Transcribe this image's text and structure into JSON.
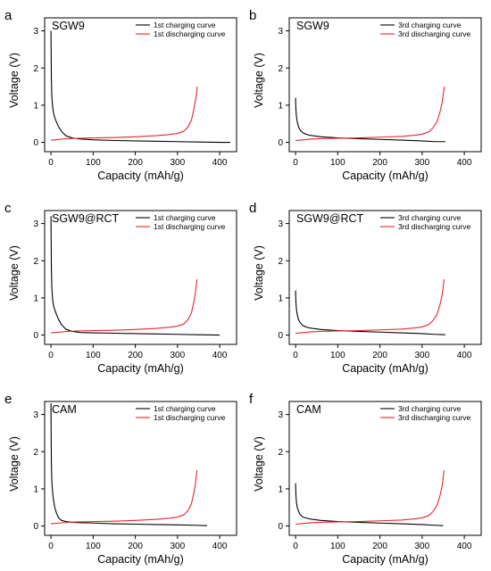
{
  "figure": {
    "background": "#ffffff"
  },
  "chart_data": [
    {
      "panel_label": "a",
      "type": "line",
      "sample": "SGW9",
      "xlabel": "Capacity (mAh/g)",
      "ylabel": "Voltage (V)",
      "xlim": [
        -15,
        440
      ],
      "ylim": [
        -0.25,
        3.35
      ],
      "xticks": [
        "0",
        "100",
        "200",
        "300",
        "400"
      ],
      "yticks": [
        "0",
        "1",
        "2",
        "3"
      ],
      "legend_position": "top-right",
      "series": [
        {
          "name": "1st charging curve",
          "color": "#000000",
          "x": [
            0,
            0.5,
            1,
            2,
            4,
            6,
            9,
            13,
            18,
            25,
            35,
            50,
            70,
            100,
            150,
            200,
            250,
            300,
            350,
            400,
            425
          ],
          "y": [
            3.0,
            2.4,
            1.7,
            1.25,
            0.95,
            0.8,
            0.66,
            0.55,
            0.42,
            0.3,
            0.18,
            0.12,
            0.09,
            0.07,
            0.05,
            0.04,
            0.03,
            0.02,
            0.01,
            0.0,
            0.0
          ]
        },
        {
          "name": "1st discharging curve",
          "color": "#e8262b",
          "x": [
            0,
            10,
            20,
            40,
            60,
            100,
            150,
            200,
            250,
            280,
            300,
            315,
            325,
            333,
            338,
            342,
            345,
            347
          ],
          "y": [
            0.06,
            0.07,
            0.08,
            0.1,
            0.11,
            0.12,
            0.13,
            0.15,
            0.18,
            0.21,
            0.24,
            0.3,
            0.42,
            0.6,
            0.85,
            1.1,
            1.3,
            1.5
          ]
        }
      ]
    },
    {
      "panel_label": "b",
      "type": "line",
      "sample": "SGW9",
      "xlabel": "Capacity (mAh/g)",
      "ylabel": "Voltage (V)",
      "xlim": [
        -15,
        440
      ],
      "ylim": [
        -0.25,
        3.35
      ],
      "xticks": [
        "0",
        "100",
        "200",
        "300",
        "400"
      ],
      "yticks": [
        "0",
        "1",
        "2",
        "3"
      ],
      "legend_position": "top-right",
      "series": [
        {
          "name": "3rd charging curve",
          "color": "#000000",
          "x": [
            0,
            0.5,
            1,
            2,
            4,
            7,
            10,
            15,
            20,
            30,
            40,
            60,
            100,
            150,
            200,
            250,
            300,
            330,
            355
          ],
          "y": [
            1.2,
            1.0,
            0.85,
            0.7,
            0.55,
            0.42,
            0.35,
            0.28,
            0.24,
            0.2,
            0.18,
            0.15,
            0.12,
            0.1,
            0.08,
            0.06,
            0.04,
            0.02,
            0.02
          ]
        },
        {
          "name": "3rd discharging curve",
          "color": "#e8262b",
          "x": [
            0,
            10,
            20,
            40,
            60,
            100,
            150,
            200,
            250,
            280,
            300,
            315,
            325,
            335,
            342,
            347,
            350,
            353
          ],
          "y": [
            0.05,
            0.06,
            0.07,
            0.09,
            0.1,
            0.11,
            0.12,
            0.14,
            0.16,
            0.19,
            0.22,
            0.28,
            0.38,
            0.55,
            0.8,
            1.05,
            1.3,
            1.5
          ]
        }
      ]
    },
    {
      "panel_label": "c",
      "type": "line",
      "sample": "SGW9@RCT",
      "xlabel": "Capacity (mAh/g)",
      "ylabel": "Voltage (V)",
      "xlim": [
        -15,
        440
      ],
      "ylim": [
        -0.25,
        3.35
      ],
      "xticks": [
        "0",
        "100",
        "200",
        "300",
        "400"
      ],
      "yticks": [
        "0",
        "1",
        "2",
        "3"
      ],
      "legend_position": "top-right",
      "series": [
        {
          "name": "1st charging curve",
          "color": "#000000",
          "x": [
            0,
            0.5,
            1,
            2,
            4,
            6,
            9,
            13,
            18,
            25,
            35,
            50,
            70,
            100,
            150,
            200,
            250,
            300,
            350,
            400
          ],
          "y": [
            3.2,
            2.5,
            1.8,
            1.3,
            0.95,
            0.8,
            0.68,
            0.56,
            0.42,
            0.28,
            0.16,
            0.1,
            0.07,
            0.06,
            0.05,
            0.04,
            0.03,
            0.02,
            0.01,
            0.0
          ]
        },
        {
          "name": "1st discharging curve",
          "color": "#e8262b",
          "x": [
            0,
            10,
            20,
            40,
            60,
            100,
            150,
            200,
            250,
            280,
            300,
            315,
            325,
            333,
            338,
            342,
            344,
            346
          ],
          "y": [
            0.06,
            0.07,
            0.08,
            0.1,
            0.11,
            0.12,
            0.13,
            0.15,
            0.18,
            0.21,
            0.24,
            0.3,
            0.42,
            0.6,
            0.85,
            1.1,
            1.3,
            1.5
          ]
        }
      ]
    },
    {
      "panel_label": "d",
      "type": "line",
      "sample": "SGW9@RCT",
      "xlabel": "Capacity (mAh/g)",
      "ylabel": "Voltage (V)",
      "xlim": [
        -15,
        440
      ],
      "ylim": [
        -0.25,
        3.35
      ],
      "xticks": [
        "0",
        "100",
        "200",
        "300",
        "400"
      ],
      "yticks": [
        "0",
        "1",
        "2",
        "3"
      ],
      "legend_position": "top-right",
      "series": [
        {
          "name": "3rd charging curve",
          "color": "#000000",
          "x": [
            0,
            0.5,
            1,
            2,
            4,
            7,
            10,
            15,
            20,
            30,
            40,
            60,
            100,
            150,
            200,
            250,
            300,
            330,
            355
          ],
          "y": [
            1.2,
            1.0,
            0.85,
            0.7,
            0.55,
            0.42,
            0.35,
            0.28,
            0.24,
            0.2,
            0.18,
            0.15,
            0.12,
            0.1,
            0.08,
            0.06,
            0.04,
            0.02,
            0.01
          ]
        },
        {
          "name": "3rd discharging curve",
          "color": "#e8262b",
          "x": [
            0,
            10,
            20,
            40,
            60,
            100,
            150,
            200,
            250,
            280,
            300,
            315,
            325,
            335,
            342,
            347,
            350,
            352
          ],
          "y": [
            0.05,
            0.06,
            0.07,
            0.09,
            0.1,
            0.11,
            0.12,
            0.14,
            0.16,
            0.19,
            0.22,
            0.28,
            0.38,
            0.55,
            0.8,
            1.05,
            1.3,
            1.5
          ]
        }
      ]
    },
    {
      "panel_label": "e",
      "type": "line",
      "sample": "CAM",
      "xlabel": "Capacity (mAh/g)",
      "ylabel": "Voltage (V)",
      "xlim": [
        -15,
        440
      ],
      "ylim": [
        -0.25,
        3.35
      ],
      "xticks": [
        "0",
        "100",
        "200",
        "300",
        "400"
      ],
      "yticks": [
        "0",
        "1",
        "2",
        "3"
      ],
      "legend_position": "top-right",
      "series": [
        {
          "name": "1st charging curve",
          "color": "#000000",
          "x": [
            0,
            0.5,
            1,
            2,
            4,
            6,
            9,
            13,
            18,
            25,
            35,
            50,
            70,
            100,
            150,
            200,
            250,
            300,
            340,
            370
          ],
          "y": [
            3.3,
            2.4,
            1.7,
            1.2,
            0.9,
            0.7,
            0.5,
            0.35,
            0.22,
            0.15,
            0.12,
            0.1,
            0.09,
            0.08,
            0.06,
            0.05,
            0.04,
            0.03,
            0.02,
            0.01
          ]
        },
        {
          "name": "1st discharging curve",
          "color": "#e8262b",
          "x": [
            0,
            10,
            20,
            40,
            60,
            100,
            150,
            200,
            250,
            280,
            300,
            315,
            325,
            333,
            338,
            342,
            344,
            346
          ],
          "y": [
            0.06,
            0.07,
            0.08,
            0.1,
            0.11,
            0.12,
            0.13,
            0.15,
            0.18,
            0.21,
            0.24,
            0.3,
            0.42,
            0.6,
            0.85,
            1.1,
            1.3,
            1.5
          ]
        }
      ]
    },
    {
      "panel_label": "f",
      "type": "line",
      "sample": "CAM",
      "xlabel": "Capacity (mAh/g)",
      "ylabel": "Voltage (V)",
      "xlim": [
        -15,
        440
      ],
      "ylim": [
        -0.25,
        3.35
      ],
      "xticks": [
        "0",
        "100",
        "200",
        "300",
        "400"
      ],
      "yticks": [
        "0",
        "1",
        "2",
        "3"
      ],
      "legend_position": "top-right",
      "series": [
        {
          "name": "3rd charging curve",
          "color": "#000000",
          "x": [
            0,
            0.5,
            1,
            2,
            4,
            7,
            10,
            15,
            20,
            30,
            40,
            60,
            100,
            150,
            200,
            250,
            300,
            330,
            350
          ],
          "y": [
            1.15,
            0.95,
            0.8,
            0.65,
            0.5,
            0.4,
            0.32,
            0.26,
            0.23,
            0.2,
            0.18,
            0.15,
            0.12,
            0.1,
            0.08,
            0.06,
            0.04,
            0.02,
            0.01
          ]
        },
        {
          "name": "3rd discharging curve",
          "color": "#e8262b",
          "x": [
            0,
            10,
            20,
            40,
            60,
            100,
            150,
            200,
            250,
            280,
            300,
            315,
            325,
            335,
            342,
            347,
            350,
            352
          ],
          "y": [
            0.05,
            0.06,
            0.07,
            0.09,
            0.1,
            0.11,
            0.12,
            0.14,
            0.16,
            0.19,
            0.22,
            0.28,
            0.38,
            0.55,
            0.8,
            1.05,
            1.3,
            1.5
          ]
        }
      ]
    }
  ]
}
